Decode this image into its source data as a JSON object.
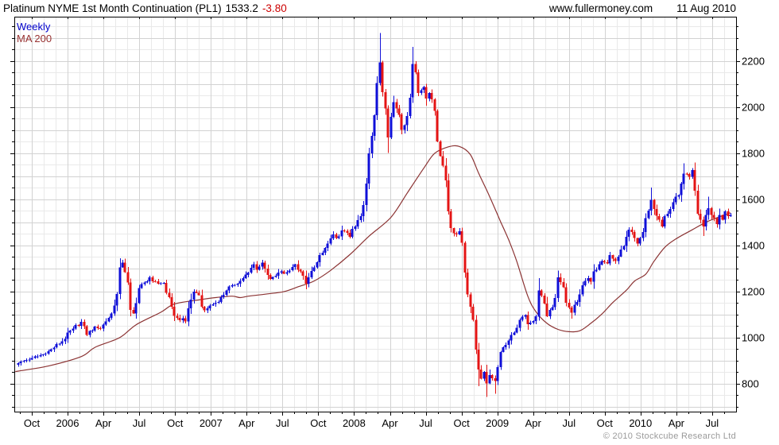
{
  "header": {
    "title": "Platinum NYME 1st Month Continuation (PL1)",
    "last_price": "1533.2",
    "change": "-3.80",
    "site": "www.fullermoney.com",
    "date": "11 Aug 2010"
  },
  "legend": {
    "series_label": "Weekly",
    "ma_label": "MA 200"
  },
  "footer": {
    "copyright": "© 2010 Stockcube Research Ltd"
  },
  "colors": {
    "up_candle": "#0f0fd8",
    "down_candle": "#e41414",
    "ma_line": "#8b3333",
    "legend_series": "#0000cc",
    "legend_ma": "#993333",
    "change_text": "#cc0000",
    "grid_major": "#d2d2d2",
    "grid_minor": "#e9e9e9",
    "axis": "#000000",
    "copyright_text": "#9a9a9a"
  },
  "chart_data": {
    "type": "candlestick",
    "title": "Platinum NYME 1st Month Continuation (PL1)",
    "series_name": "Weekly",
    "overlay": "MA 200",
    "last_price": 1533.2,
    "change": -3.8,
    "weeks": 260,
    "time_range": "Aug 2005 - 11 Aug 2010",
    "y_axis": {
      "min": 679,
      "max": 2393,
      "label_ticks": [
        800,
        1000,
        1200,
        1400,
        1600,
        1800,
        2000,
        2200
      ],
      "label_step": 200,
      "minor_tick_step": 50,
      "grid_major_step": 100,
      "grid_minor_step": 50
    },
    "x_axis": {
      "labels": [
        "Oct",
        "2006",
        "Apr",
        "Jul",
        "Oct",
        "2007",
        "Apr",
        "Jul",
        "Oct",
        "2008",
        "Apr",
        "Jul",
        "Oct",
        "2009",
        "Apr",
        "Jul",
        "Oct",
        "2010",
        "Apr",
        "Jul"
      ],
      "major_tick": "quarterly",
      "minor_tick": "monthly"
    },
    "close_anchors": [
      [
        0,
        890
      ],
      [
        5,
        912
      ],
      [
        10,
        930
      ],
      [
        12,
        950
      ],
      [
        16,
        985
      ],
      [
        20,
        1040
      ],
      [
        23,
        1068
      ],
      [
        25,
        1012
      ],
      [
        28,
        1048
      ],
      [
        30,
        1040
      ],
      [
        32,
        1070
      ],
      [
        34,
        1105
      ],
      [
        35,
        1140
      ],
      [
        36,
        1190
      ],
      [
        37,
        1305,
        1345,
        null
      ],
      [
        38,
        1325
      ],
      [
        39,
        1285
      ],
      [
        40,
        1240
      ],
      [
        41,
        1120,
        null,
        1092
      ],
      [
        42,
        1105
      ],
      [
        43,
        1150
      ],
      [
        44,
        1215
      ],
      [
        46,
        1240
      ],
      [
        48,
        1262
      ],
      [
        49,
        1245
      ],
      [
        51,
        1235
      ],
      [
        53,
        1238
      ],
      [
        54,
        1195
      ],
      [
        56,
        1135
      ],
      [
        57,
        1095
      ],
      [
        59,
        1075
      ],
      [
        60,
        1085
      ],
      [
        61,
        1070
      ],
      [
        63,
        1165
      ],
      [
        64,
        1200
      ],
      [
        66,
        1185
      ],
      [
        67,
        1135
      ],
      [
        68,
        1118
      ],
      [
        70,
        1140
      ],
      [
        72,
        1152
      ],
      [
        74,
        1175
      ],
      [
        76,
        1205
      ],
      [
        78,
        1228
      ],
      [
        80,
        1235
      ],
      [
        82,
        1258
      ],
      [
        84,
        1282
      ],
      [
        86,
        1318
      ],
      [
        87,
        1295
      ],
      [
        89,
        1325
      ],
      [
        90,
        1300
      ],
      [
        92,
        1255
      ],
      [
        94,
        1268
      ],
      [
        96,
        1288
      ],
      [
        97,
        1278
      ],
      [
        99,
        1292
      ],
      [
        101,
        1318
      ],
      [
        102,
        1295
      ],
      [
        104,
        1268
      ],
      [
        105,
        1235
      ],
      [
        106,
        1262
      ],
      [
        108,
        1305
      ],
      [
        109,
        1328
      ],
      [
        111,
        1368
      ],
      [
        113,
        1408
      ],
      [
        115,
        1448
      ],
      [
        116,
        1432
      ],
      [
        118,
        1465
      ],
      [
        120,
        1455
      ],
      [
        121,
        1438
      ],
      [
        123,
        1482
      ],
      [
        125,
        1528
      ],
      [
        126,
        1575
      ],
      [
        127,
        1668
      ],
      [
        128,
        1800
      ],
      [
        130,
        1965
      ],
      [
        131,
        2105
      ],
      [
        132,
        2195,
        2322,
        null
      ],
      [
        133,
        2065
      ],
      [
        134,
        1995
      ],
      [
        135,
        1868,
        null,
        1802
      ],
      [
        136,
        1958
      ],
      [
        137,
        2022
      ],
      [
        139,
        1968
      ],
      [
        140,
        1902
      ],
      [
        142,
        1962
      ],
      [
        143,
        2042
      ],
      [
        144,
        2188,
        2262,
        null
      ],
      [
        145,
        2152
      ],
      [
        146,
        2062
      ],
      [
        148,
        2088
      ],
      [
        149,
        2038
      ],
      [
        150,
        2062
      ],
      [
        152,
        1985
      ],
      [
        153,
        1852
      ],
      [
        154,
        1788
      ],
      [
        156,
        1682
      ],
      [
        157,
        1548
      ],
      [
        158,
        1475
      ],
      [
        160,
        1448
      ],
      [
        161,
        1462
      ],
      [
        162,
        1412
      ],
      [
        163,
        1282
      ],
      [
        164,
        1188
      ],
      [
        166,
        1078
      ],
      [
        167,
        948
      ],
      [
        168,
        862,
        null,
        790
      ],
      [
        169,
        822
      ],
      [
        170,
        852
      ],
      [
        171,
        802,
        null,
        742
      ],
      [
        172,
        838
      ],
      [
        174,
        812,
        null,
        756
      ],
      [
        175,
        872
      ],
      [
        176,
        938
      ],
      [
        177,
        958
      ],
      [
        179,
        988
      ],
      [
        180,
        1012
      ],
      [
        182,
        1042
      ],
      [
        183,
        1078
      ],
      [
        185,
        1098
      ],
      [
        186,
        1058
      ],
      [
        188,
        1072
      ],
      [
        189,
        1092
      ],
      [
        190,
        1205,
        1258,
        null
      ],
      [
        192,
        1148
      ],
      [
        193,
        1092
      ],
      [
        195,
        1132
      ],
      [
        196,
        1172
      ],
      [
        197,
        1262,
        1292,
        null
      ],
      [
        199,
        1218
      ],
      [
        200,
        1152
      ],
      [
        202,
        1108,
        null,
        1082
      ],
      [
        203,
        1142
      ],
      [
        205,
        1188
      ],
      [
        206,
        1228
      ],
      [
        208,
        1258
      ],
      [
        209,
        1242
      ],
      [
        210,
        1288
      ],
      [
        212,
        1318
      ],
      [
        213,
        1332
      ],
      [
        215,
        1322
      ],
      [
        216,
        1358
      ],
      [
        218,
        1332
      ],
      [
        219,
        1352
      ],
      [
        221,
        1398
      ],
      [
        222,
        1438
      ],
      [
        223,
        1468
      ],
      [
        225,
        1432
      ],
      [
        226,
        1408
      ],
      [
        228,
        1458
      ],
      [
        229,
        1518
      ],
      [
        231,
        1598,
        1652,
        null
      ],
      [
        232,
        1558
      ],
      [
        234,
        1512
      ],
      [
        235,
        1482
      ],
      [
        236,
        1528
      ],
      [
        238,
        1558
      ],
      [
        239,
        1588
      ],
      [
        241,
        1618
      ],
      [
        242,
        1668
      ],
      [
        243,
        1712,
        1757,
        null
      ],
      [
        245,
        1698
      ],
      [
        246,
        1728
      ],
      [
        248,
        1538
      ],
      [
        249,
        1512
      ],
      [
        250,
        1482,
        null,
        1442
      ],
      [
        251,
        1532
      ],
      [
        252,
        1562,
        1612,
        null
      ],
      [
        254,
        1518
      ],
      [
        255,
        1492
      ],
      [
        256,
        1532
      ],
      [
        257,
        1512
      ],
      [
        258,
        1548
      ],
      [
        259,
        1528
      ],
      [
        260,
        1533.2
      ]
    ],
    "ma_anchors": [
      [
        -1,
        853
      ],
      [
        0,
        855
      ],
      [
        11,
        877
      ],
      [
        23,
        918
      ],
      [
        28,
        958
      ],
      [
        37,
        1000
      ],
      [
        43,
        1056
      ],
      [
        52,
        1110
      ],
      [
        57,
        1146
      ],
      [
        66,
        1164
      ],
      [
        72,
        1174
      ],
      [
        78,
        1180
      ],
      [
        81,
        1174
      ],
      [
        84,
        1180
      ],
      [
        91,
        1190
      ],
      [
        97,
        1200
      ],
      [
        102,
        1220
      ],
      [
        108,
        1246
      ],
      [
        114,
        1292
      ],
      [
        121,
        1360
      ],
      [
        128,
        1440
      ],
      [
        136,
        1522
      ],
      [
        142,
        1628
      ],
      [
        148,
        1735
      ],
      [
        152,
        1800
      ],
      [
        157,
        1828
      ],
      [
        161,
        1830
      ],
      [
        165,
        1795
      ],
      [
        168,
        1715
      ],
      [
        171,
        1640
      ],
      [
        174,
        1560
      ],
      [
        176,
        1505
      ],
      [
        179,
        1425
      ],
      [
        182,
        1330
      ],
      [
        186,
        1180
      ],
      [
        189,
        1112
      ],
      [
        193,
        1062
      ],
      [
        197,
        1036
      ],
      [
        201,
        1026
      ],
      [
        205,
        1030
      ],
      [
        209,
        1062
      ],
      [
        213,
        1102
      ],
      [
        217,
        1152
      ],
      [
        222,
        1206
      ],
      [
        225,
        1246
      ],
      [
        229,
        1275
      ],
      [
        232,
        1330
      ],
      [
        236,
        1392
      ],
      [
        240,
        1428
      ],
      [
        246,
        1468
      ],
      [
        252,
        1506
      ],
      [
        260,
        1542
      ]
    ]
  }
}
